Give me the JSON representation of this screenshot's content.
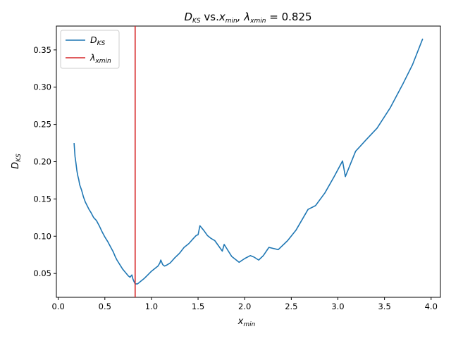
{
  "chart_data": {
    "type": "line",
    "title": {
      "main": "D",
      "main_sub": "KS",
      "middle": " vs.",
      "var": "x",
      "var_sub": "min",
      "lambda_text": ",  λ",
      "lambda_sub": "xmin",
      "value_text": " = 0.825"
    },
    "xlabel": {
      "main": "x",
      "sub": "min"
    },
    "ylabel": {
      "main": "D",
      "sub": "KS"
    },
    "xlim": [
      -0.02,
      4.1
    ],
    "ylim": [
      0.018,
      0.382
    ],
    "xticks": [
      0.0,
      0.5,
      1.0,
      1.5,
      2.0,
      2.5,
      3.0,
      3.5,
      4.0
    ],
    "xtick_labels": [
      "0.0",
      "0.5",
      "1.0",
      "1.5",
      "2.0",
      "2.5",
      "3.0",
      "3.5",
      "4.0"
    ],
    "yticks": [
      0.05,
      0.1,
      0.15,
      0.2,
      0.25,
      0.3,
      0.35
    ],
    "ytick_labels": [
      "0.05",
      "0.10",
      "0.15",
      "0.20",
      "0.25",
      "0.30",
      "0.35"
    ],
    "grid": false,
    "legend_position": "upper-left",
    "legend": [
      {
        "label": "D",
        "sub": "KS",
        "color": "#1f77b4",
        "kind": "line"
      },
      {
        "label": "λ",
        "sub": "xmin",
        "color": "#d62728",
        "kind": "vline"
      }
    ],
    "series": [
      {
        "color": "#1f77b4",
        "x": [
          0.17,
          0.18,
          0.19,
          0.2,
          0.21,
          0.22,
          0.23,
          0.25,
          0.27,
          0.29,
          0.31,
          0.33,
          0.35,
          0.38,
          0.41,
          0.44,
          0.47,
          0.5,
          0.53,
          0.56,
          0.59,
          0.61,
          0.63,
          0.65,
          0.67,
          0.69,
          0.71,
          0.73,
          0.75,
          0.77,
          0.79,
          0.8,
          0.81,
          0.825,
          0.85,
          0.88,
          0.92,
          0.96,
          1.0,
          1.04,
          1.07,
          1.09,
          1.1,
          1.12,
          1.14,
          1.16,
          1.2,
          1.25,
          1.3,
          1.35,
          1.4,
          1.45,
          1.48,
          1.5,
          1.52,
          1.56,
          1.6,
          1.64,
          1.68,
          1.72,
          1.76,
          1.78,
          1.8,
          1.86,
          1.94,
          2.0,
          2.06,
          2.1,
          2.15,
          2.2,
          2.26,
          2.36,
          2.46,
          2.55,
          2.68,
          2.76,
          2.86,
          2.96,
          3.05,
          3.08,
          3.19,
          3.3,
          3.42,
          3.56,
          3.7,
          3.8,
          3.91
        ],
        "y": [
          0.225,
          0.207,
          0.198,
          0.188,
          0.181,
          0.176,
          0.169,
          0.162,
          0.153,
          0.146,
          0.141,
          0.136,
          0.132,
          0.125,
          0.121,
          0.114,
          0.106,
          0.099,
          0.093,
          0.086,
          0.079,
          0.073,
          0.068,
          0.064,
          0.06,
          0.056,
          0.053,
          0.05,
          0.047,
          0.045,
          0.048,
          0.043,
          0.04,
          0.036,
          0.036,
          0.039,
          0.043,
          0.048,
          0.053,
          0.057,
          0.06,
          0.064,
          0.068,
          0.062,
          0.06,
          0.061,
          0.064,
          0.071,
          0.077,
          0.085,
          0.09,
          0.097,
          0.101,
          0.102,
          0.114,
          0.108,
          0.101,
          0.097,
          0.094,
          0.087,
          0.08,
          0.089,
          0.085,
          0.073,
          0.065,
          0.07,
          0.074,
          0.072,
          0.068,
          0.074,
          0.085,
          0.082,
          0.094,
          0.108,
          0.136,
          0.141,
          0.158,
          0.18,
          0.201,
          0.18,
          0.214,
          0.229,
          0.245,
          0.272,
          0.305,
          0.33,
          0.365
        ]
      }
    ],
    "vline": {
      "x": 0.825,
      "color": "#d62728"
    }
  }
}
